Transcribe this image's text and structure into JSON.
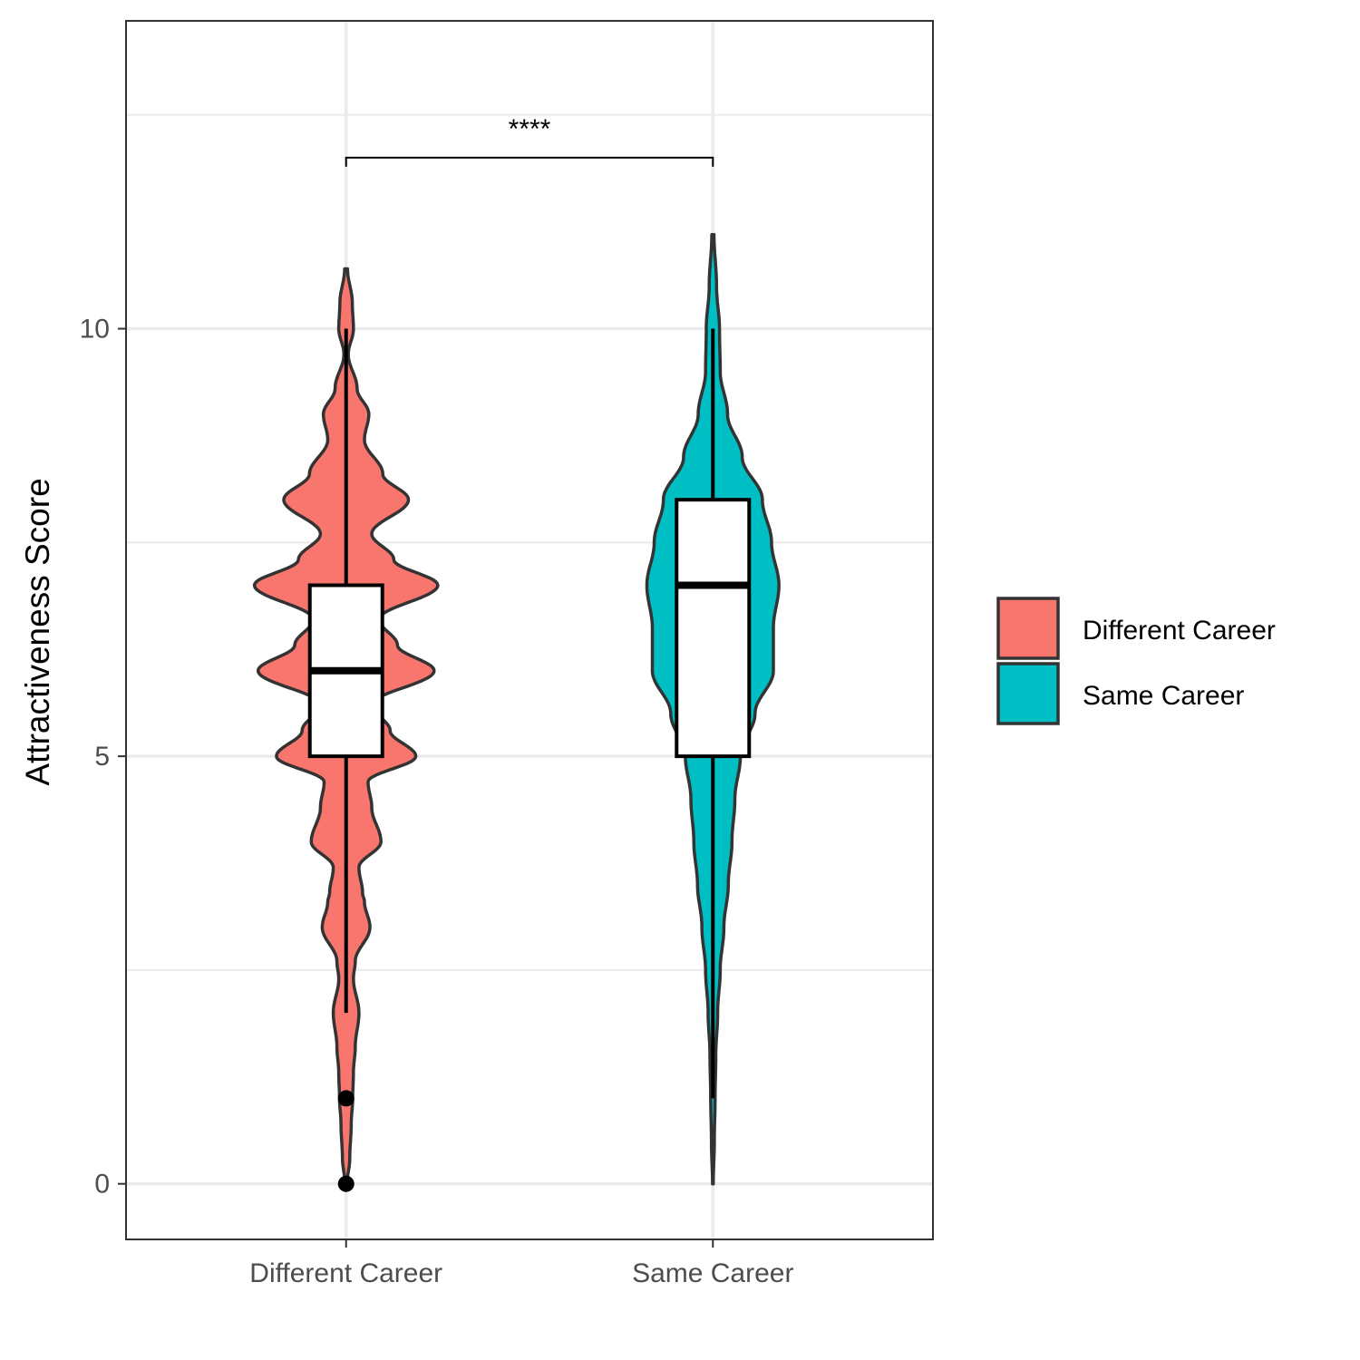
{
  "chart_data": {
    "type": "violin",
    "title": "",
    "xlabel": "",
    "ylabel": "Attractiveness Score",
    "ylim": [
      -0.65,
      13.6
    ],
    "yticks": [
      0,
      5,
      10
    ],
    "ytick_labels": [
      "0",
      "5",
      "10"
    ],
    "minor_gridlines": [
      2.5,
      7.5,
      12.5
    ],
    "grid": true,
    "categories": [
      "Different Career",
      "Same Career"
    ],
    "series": [
      {
        "name": "Different Career",
        "color": "#F8766D",
        "box": {
          "q1": 5,
          "median": 6,
          "q3": 7,
          "whisker_low": 2,
          "whisker_high": 10
        },
        "outliers": [
          1,
          0
        ],
        "violin_y_range": [
          0,
          10.7
        ],
        "violin_half_widths": [
          [
            0,
            0.003
          ],
          [
            0.3,
            0.01
          ],
          [
            0.7,
            0.014
          ],
          [
            1.0,
            0.018
          ],
          [
            1.3,
            0.02
          ],
          [
            1.6,
            0.025
          ],
          [
            2.0,
            0.035
          ],
          [
            2.4,
            0.02
          ],
          [
            2.6,
            0.025
          ],
          [
            3.0,
            0.065
          ],
          [
            3.3,
            0.05
          ],
          [
            3.4,
            0.045
          ],
          [
            3.7,
            0.035
          ],
          [
            4.0,
            0.095
          ],
          [
            4.4,
            0.07
          ],
          [
            4.7,
            0.06
          ],
          [
            5.0,
            0.19
          ],
          [
            5.3,
            0.12
          ],
          [
            5.6,
            0.07
          ],
          [
            6.0,
            0.24
          ],
          [
            6.3,
            0.14
          ],
          [
            6.6,
            0.09
          ],
          [
            7.0,
            0.25
          ],
          [
            7.3,
            0.13
          ],
          [
            7.6,
            0.07
          ],
          [
            8.0,
            0.17
          ],
          [
            8.3,
            0.1
          ],
          [
            8.7,
            0.05
          ],
          [
            9.0,
            0.062
          ],
          [
            9.3,
            0.03
          ],
          [
            9.7,
            0.006
          ],
          [
            10.0,
            0.02
          ],
          [
            10.3,
            0.017
          ],
          [
            10.7,
            0.004
          ]
        ]
      },
      {
        "name": "Same Career",
        "color": "#00BFC4",
        "box": {
          "q1": 5,
          "median": 7,
          "q3": 8,
          "whisker_low": 1,
          "whisker_high": 10
        },
        "outliers": [],
        "violin_y_range": [
          0,
          11.1
        ],
        "violin_half_widths": [
          [
            0,
            0.001
          ],
          [
            0.5,
            0.004
          ],
          [
            1.0,
            0.006
          ],
          [
            1.5,
            0.008
          ],
          [
            2.0,
            0.013
          ],
          [
            2.5,
            0.02
          ],
          [
            3.0,
            0.03
          ],
          [
            3.5,
            0.042
          ],
          [
            4.0,
            0.052
          ],
          [
            4.5,
            0.06
          ],
          [
            5.0,
            0.075
          ],
          [
            5.5,
            0.115
          ],
          [
            6.0,
            0.165
          ],
          [
            6.5,
            0.165
          ],
          [
            7.0,
            0.18
          ],
          [
            7.5,
            0.16
          ],
          [
            8.0,
            0.135
          ],
          [
            8.5,
            0.08
          ],
          [
            9.0,
            0.04
          ],
          [
            9.5,
            0.02
          ],
          [
            10.0,
            0.018
          ],
          [
            10.5,
            0.01
          ],
          [
            11.1,
            0.003
          ]
        ]
      }
    ],
    "significance": {
      "label": "****",
      "between": [
        "Different Career",
        "Same Career"
      ],
      "y": 12.0
    },
    "legend": {
      "placement": "right",
      "entries": [
        "Different Career",
        "Same Career"
      ]
    }
  }
}
